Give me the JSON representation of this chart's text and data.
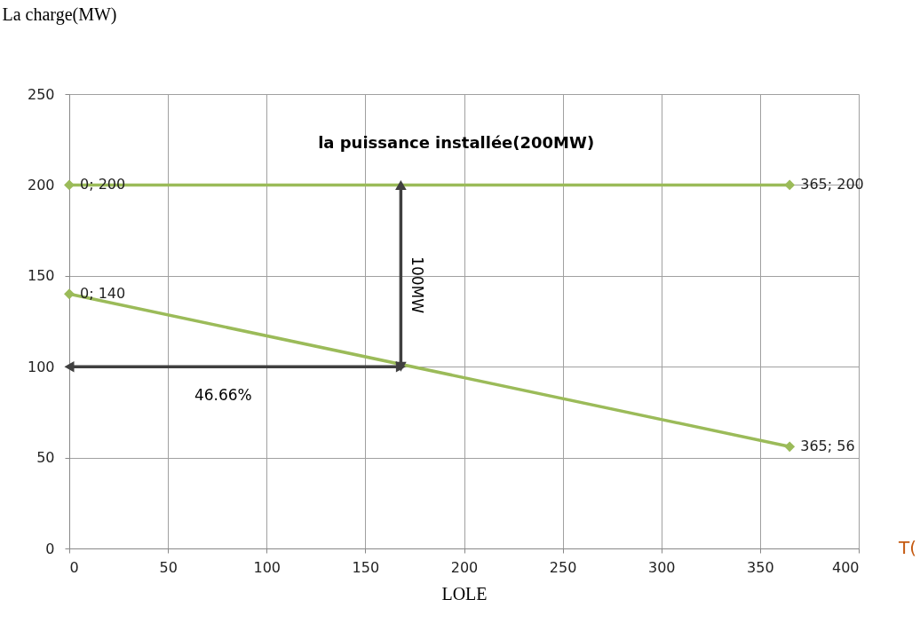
{
  "chart_data": {
    "type": "line",
    "xlabel": "LOLE",
    "ylabel": "La charge(MW)",
    "xlim": [
      0,
      400
    ],
    "xticks": [
      0,
      50,
      100,
      150,
      200,
      250,
      300,
      350,
      400
    ],
    "ylim": [
      0,
      250
    ],
    "yticks": [
      0,
      50,
      100,
      150,
      200,
      250
    ],
    "grid": true,
    "marker": "diamond",
    "line_style": "solid",
    "series": [
      {
        "color": "#9bbb59",
        "x": [
          0,
          365
        ],
        "values": [
          200,
          200
        ],
        "value_labels": [
          "0; 200",
          "365; 200"
        ]
      },
      {
        "color": "#9bbb59",
        "x": [
          0,
          365
        ],
        "values": [
          140,
          56
        ],
        "value_labels": [
          "0; 140",
          "365; 56"
        ]
      },
      {
        "type": "line",
        "color": "#404040",
        "marker": "triangle",
        "x": [
          0,
          168
        ],
        "values": [
          100,
          100
        ]
      },
      {
        "type": "line",
        "color": "#404040",
        "marker": "triangle",
        "x": [
          168,
          168
        ],
        "values": [
          200,
          100
        ]
      }
    ],
    "annotations": [
      "la puissance installée(200MW)",
      "100MW",
      "46.66%",
      "T("
    ]
  }
}
